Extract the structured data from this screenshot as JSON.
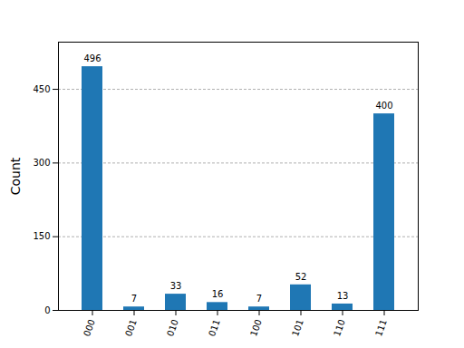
{
  "chart_data": {
    "type": "bar",
    "categories": [
      "000",
      "001",
      "010",
      "011",
      "100",
      "101",
      "110",
      "111"
    ],
    "values": [
      496,
      7,
      33,
      16,
      7,
      52,
      13,
      400
    ],
    "color": "#1f77b4",
    "y_label": "Count",
    "ylim": [
      0,
      546
    ],
    "yticks": [
      0,
      150,
      300,
      450
    ],
    "grid": true,
    "data_labels": true
  }
}
